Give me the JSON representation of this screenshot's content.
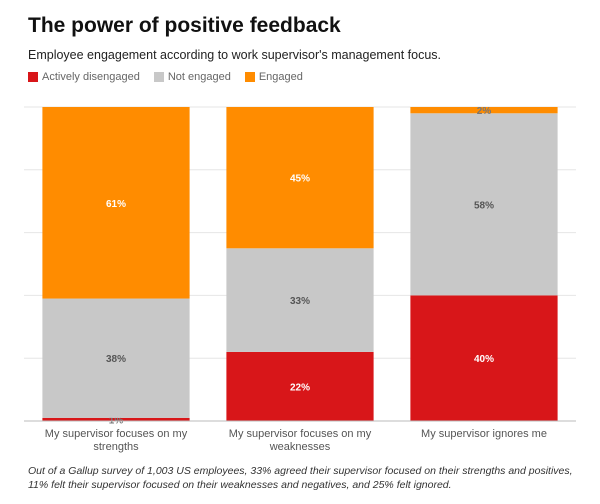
{
  "title": "The power of positive feedback",
  "subtitle": "Employee engagement according to work supervisor's management focus.",
  "legend": [
    {
      "label": "Actively disengaged",
      "color": "#d81619"
    },
    {
      "label": "Not engaged",
      "color": "#c8c8c8"
    },
    {
      "label": "Engaged",
      "color": "#ff8c00"
    }
  ],
  "footnote": "Out of a Gallup survey of 1,003 US employees, 33% agreed their supervisor focused on their strengths and positives, 11% felt their supervisor focused on their weaknesses and negatives, and 25% felt ignored.",
  "chart_data": {
    "type": "bar",
    "stacked": true,
    "title": "The power of positive feedback",
    "subtitle": "Employee engagement according to work supervisor's management focus.",
    "xlabel": "",
    "ylabel": "",
    "ylim": [
      0,
      100
    ],
    "grid": true,
    "legend_position": "top-left",
    "categories": [
      [
        "My supervisor focuses on my",
        "strengths"
      ],
      [
        "My supervisor focuses on my",
        "weaknesses"
      ],
      [
        "My supervisor ignores me"
      ]
    ],
    "series": [
      {
        "name": "Actively disengaged",
        "color": "#d81619",
        "values": [
          1,
          22,
          40
        ],
        "labels": [
          "1%",
          "22%",
          "40%"
        ],
        "label_color": "#ffffff"
      },
      {
        "name": "Not engaged",
        "color": "#c8c8c8",
        "values": [
          38,
          33,
          58
        ],
        "labels": [
          "38%",
          "33%",
          "58%"
        ],
        "label_color": "#555555"
      },
      {
        "name": "Engaged",
        "color": "#ff8c00",
        "values": [
          61,
          45,
          2
        ],
        "labels": [
          "61%",
          "45%",
          "2%"
        ],
        "label_color": "#ffffff"
      }
    ]
  }
}
